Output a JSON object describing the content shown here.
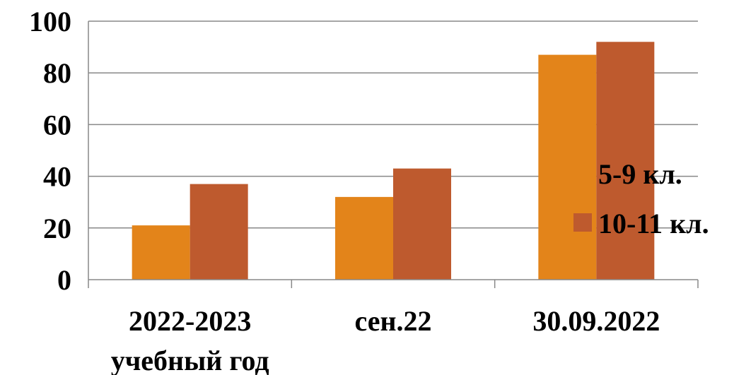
{
  "colors": {
    "series_1": "#E3841A",
    "series_2": "#BE5A2E",
    "gridline": "#888888",
    "axis": "#888888",
    "background": "#FFFFFF"
  },
  "chart_data": {
    "type": "bar",
    "categories": [
      [
        "2022-2023",
        "учебный год"
      ],
      [
        "сен.22"
      ],
      [
        "30.09.2022"
      ]
    ],
    "series": [
      {
        "name": "5-9 кл.",
        "values": [
          21,
          32,
          87
        ]
      },
      {
        "name": "10-11 кл.",
        "values": [
          37,
          43,
          92
        ]
      }
    ],
    "yticks": [
      "0",
      "20",
      "40",
      "60",
      "80",
      "100"
    ],
    "ylim": [
      0,
      100
    ],
    "grid": true,
    "legend_position": "right",
    "title": "",
    "xlabel": "",
    "ylabel": ""
  }
}
